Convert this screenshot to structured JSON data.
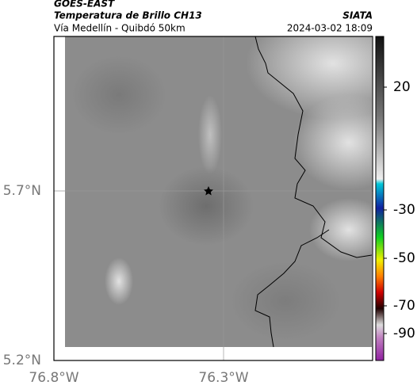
{
  "header": {
    "satellite": "GOES-EAST",
    "product": "Temperatura de Brillo CH13",
    "source": "SIATA",
    "route": "Vía Medellín - Quibdó 50km",
    "timestamp": "2024-03-02 18:09"
  },
  "axes": {
    "lat_labels": [
      "5.7°N",
      "5.2°N"
    ],
    "lon_labels": [
      "76.8°W",
      "76.3°W"
    ]
  },
  "colorbar": {
    "ticks": [
      20,
      -30,
      -50,
      -70,
      -90
    ]
  }
}
